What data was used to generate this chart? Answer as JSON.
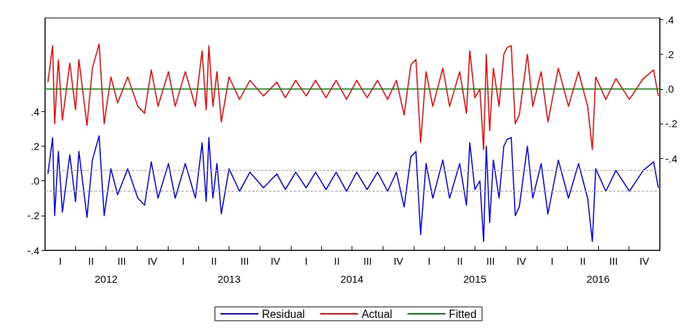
{
  "chart_data": {
    "type": "line",
    "marker": "none",
    "line_style": "solid",
    "legend": "bottom",
    "grid": false,
    "xlim": [
      "2012-01-01",
      "2016-12-31"
    ],
    "xticks": [
      {
        "value": "2012-07-01",
        "label": "2012"
      },
      {
        "value": "2013-07-01",
        "label": "2013"
      },
      {
        "value": "2014-07-01",
        "label": "2014"
      },
      {
        "value": "2015-07-01",
        "label": "2015"
      },
      {
        "value": "2016-07-01",
        "label": "2016"
      },
      {
        "value": "2012-04-01",
        "label": null
      },
      {
        "value": "2012-07-01",
        "label": null
      },
      {
        "value": "2012-10-01",
        "label": null
      },
      {
        "value": "2013-01-01",
        "label": null
      },
      {
        "value": "2013-04-01",
        "label": null
      },
      {
        "value": "2013-07-01",
        "label": null
      },
      {
        "value": "2013-10-01",
        "label": null
      },
      {
        "value": "2014-01-01",
        "label": null
      },
      {
        "value": "2014-04-01",
        "label": null
      },
      {
        "value": "2014-07-01",
        "label": null
      },
      {
        "value": "2014-10-01",
        "label": null
      },
      {
        "value": "2015-01-01",
        "label": null
      },
      {
        "value": "2015-04-01",
        "label": null
      },
      {
        "value": "2015-07-01",
        "label": null
      },
      {
        "value": "2015-10-01",
        "label": null
      },
      {
        "value": "2016-01-01",
        "label": null
      },
      {
        "value": "2016-04-01",
        "label": null
      },
      {
        "value": "2016-07-01",
        "label": null
      },
      {
        "value": "2016-10-01",
        "label": null
      }
    ],
    "annotations": [
      "I",
      "II",
      "III",
      "IV",
      "I",
      "II",
      "III",
      "IV",
      "I",
      "II",
      "III",
      "IV",
      "I",
      "II",
      "III",
      "IV",
      "I",
      "II",
      "III",
      "IV"
    ],
    "ylim": [
      -0.4,
      0.94
    ],
    "yticks": [
      {
        "value": -0.4,
        "label": "-.4"
      },
      {
        "value": -0.2,
        "label": "-.2"
      },
      {
        "value": 0,
        "label": ".0"
      },
      {
        "value": 0.2,
        "label": ".2"
      },
      {
        "value": 0.4,
        "label": ".4"
      }
    ],
    "y2lim": [
      -0.93,
      0.41
    ],
    "y2ticks": [
      {
        "value": -0.4,
        "label": "-.4"
      },
      {
        "value": -0.2,
        "label": "-.2"
      },
      {
        "value": 0,
        "label": ".0"
      },
      {
        "value": 0.2,
        "label": ".2"
      },
      {
        "value": 0.4,
        "label": ".4"
      }
    ],
    "ref_lines": [
      {
        "axis": "y",
        "value": 0.06,
        "color": "#a0a0a0",
        "line_style": "dashed"
      },
      {
        "axis": "y",
        "value": -0.06,
        "color": "#a0a0a0",
        "line_style": "dashed"
      }
    ],
    "x": [
      "2012-01-10",
      "2012-01-24",
      "2012-01-30",
      "2012-02-10",
      "2012-02-22",
      "2012-03-15",
      "2012-04-01",
      "2012-04-11",
      "2012-05-05",
      "2012-05-21",
      "2012-06-10",
      "2012-06-25",
      "2012-07-15",
      "2012-08-04",
      "2012-09-03",
      "2012-10-03",
      "2012-10-23",
      "2012-11-12",
      "2012-12-02",
      "2013-01-02",
      "2013-01-22",
      "2013-02-21",
      "2013-03-23",
      "2013-04-12",
      "2013-04-24",
      "2013-05-02",
      "2013-05-14",
      "2013-05-26",
      "2013-06-08",
      "2013-07-01",
      "2013-08-01",
      "2013-09-01",
      "2013-10-11",
      "2013-11-20",
      "2013-12-15",
      "2014-01-15",
      "2014-02-15",
      "2014-03-15",
      "2014-04-15",
      "2014-05-15",
      "2014-06-15",
      "2014-07-15",
      "2014-08-15",
      "2014-09-15",
      "2014-10-15",
      "2014-11-10",
      "2014-12-03",
      "2014-12-23",
      "2015-01-07",
      "2015-01-21",
      "2015-02-06",
      "2015-02-26",
      "2015-03-28",
      "2015-04-17",
      "2015-05-17",
      "2015-06-06",
      "2015-06-16",
      "2015-07-01",
      "2015-07-16",
      "2015-07-27",
      "2015-08-04",
      "2015-08-14",
      "2015-08-25",
      "2015-09-11",
      "2015-09-25",
      "2015-10-05",
      "2015-10-17",
      "2015-10-29",
      "2015-11-10",
      "2015-12-04",
      "2015-12-20",
      "2016-01-14",
      "2016-02-03",
      "2016-03-05",
      "2016-04-04",
      "2016-05-04",
      "2016-05-31",
      "2016-06-14",
      "2016-06-24",
      "2016-07-24",
      "2016-08-23",
      "2016-10-02",
      "2016-11-12",
      "2016-12-13",
      "2016-12-27"
    ],
    "series": [
      {
        "name": "Residual",
        "color": "#0000ff",
        "axis": "y",
        "values": [
          0.04,
          0.25,
          -0.2,
          0.17,
          -0.18,
          0.15,
          -0.12,
          0.17,
          -0.21,
          0.12,
          0.26,
          -0.2,
          0.07,
          -0.08,
          0.07,
          -0.1,
          -0.14,
          0.11,
          -0.1,
          0.1,
          -0.1,
          0.1,
          -0.1,
          0.22,
          -0.12,
          0.25,
          -0.1,
          0.1,
          -0.19,
          0.07,
          -0.06,
          0.05,
          -0.04,
          0.04,
          -0.05,
          0.05,
          -0.04,
          0.05,
          -0.05,
          0.05,
          -0.06,
          0.05,
          -0.05,
          0.05,
          -0.06,
          0.05,
          -0.15,
          0.14,
          0.17,
          -0.31,
          0.1,
          -0.1,
          0.12,
          -0.1,
          0.1,
          -0.14,
          0.22,
          -0.05,
          0,
          -0.35,
          0.2,
          -0.24,
          0.12,
          -0.1,
          0.2,
          0.24,
          0.25,
          -0.2,
          -0.15,
          0.2,
          -0.1,
          0.1,
          -0.19,
          0.12,
          -0.1,
          0.1,
          -0.1,
          -0.35,
          0.07,
          -0.06,
          0.06,
          -0.06,
          0.06,
          0.11,
          -0.04
        ]
      },
      {
        "name": "Actual",
        "color": "#ff0000",
        "axis": "y2",
        "values": [
          0.04,
          0.25,
          -0.2,
          0.17,
          -0.18,
          0.15,
          -0.12,
          0.17,
          -0.21,
          0.12,
          0.26,
          -0.2,
          0.07,
          -0.08,
          0.07,
          -0.1,
          -0.14,
          0.11,
          -0.1,
          0.1,
          -0.1,
          0.1,
          -0.1,
          0.22,
          -0.12,
          0.25,
          -0.1,
          0.1,
          -0.19,
          0.07,
          -0.06,
          0.05,
          -0.04,
          0.04,
          -0.05,
          0.05,
          -0.04,
          0.05,
          -0.05,
          0.05,
          -0.06,
          0.05,
          -0.05,
          0.05,
          -0.06,
          0.05,
          -0.15,
          0.14,
          0.17,
          -0.31,
          0.1,
          -0.1,
          0.12,
          -0.1,
          0.1,
          -0.14,
          0.22,
          -0.05,
          0,
          -0.35,
          0.2,
          -0.24,
          0.12,
          -0.1,
          0.2,
          0.24,
          0.25,
          -0.2,
          -0.15,
          0.2,
          -0.1,
          0.1,
          -0.19,
          0.12,
          -0.1,
          0.1,
          -0.1,
          -0.35,
          0.07,
          -0.06,
          0.06,
          -0.06,
          0.06,
          0.11,
          -0.04
        ]
      },
      {
        "name": "Fitted",
        "color": "#008000",
        "axis": "y2",
        "x": [
          "2012-01-01",
          "2016-12-31"
        ],
        "values": [
          0,
          0
        ]
      }
    ]
  }
}
